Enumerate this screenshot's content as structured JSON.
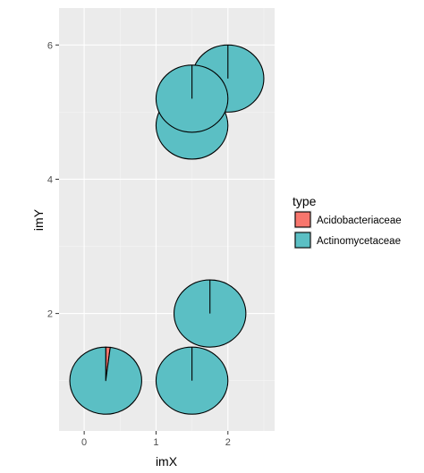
{
  "chart_data": {
    "type": "scatter",
    "marker": "pie",
    "xlabel": "imX",
    "ylabel": "imY",
    "xlim": [
      -0.35,
      2.65
    ],
    "ylim": [
      0.25,
      6.55
    ],
    "x_ticks": [
      0,
      1,
      2
    ],
    "x_tick_labels": [
      "0",
      "1",
      "2"
    ],
    "y_ticks": [
      2,
      4,
      6
    ],
    "y_tick_labels": [
      "2",
      "4",
      "6"
    ],
    "grid": true,
    "legend": {
      "title": "type",
      "position": "right",
      "entries": [
        {
          "label": "Acidobacteriaceae",
          "color": "#F8766D"
        },
        {
          "label": "Actinomycetaceae",
          "color": "#5BBFC4"
        }
      ]
    },
    "pie_radius": 0.5,
    "points": [
      {
        "x": 0.3,
        "y": 1.0,
        "Acidobacteriaceae": 0.02,
        "Actinomycetaceae": 0.98
      },
      {
        "x": 1.5,
        "y": 1.0,
        "Acidobacteriaceae": 0.0,
        "Actinomycetaceae": 1.0
      },
      {
        "x": 1.75,
        "y": 2.0,
        "Acidobacteriaceae": 0.0,
        "Actinomycetaceae": 1.0
      },
      {
        "x": 1.5,
        "y": 4.8,
        "Acidobacteriaceae": 0.0,
        "Actinomycetaceae": 1.0
      },
      {
        "x": 2.0,
        "y": 5.5,
        "Acidobacteriaceae": 0.0,
        "Actinomycetaceae": 1.0
      },
      {
        "x": 1.5,
        "y": 5.2,
        "Acidobacteriaceae": 0.0,
        "Actinomycetaceae": 1.0
      }
    ]
  },
  "colors": {
    "panel_background": "#EBEBEB",
    "grid_major": "#FFFFFF",
    "grid_minor": "#F5F5F5",
    "outline": "#000000"
  }
}
